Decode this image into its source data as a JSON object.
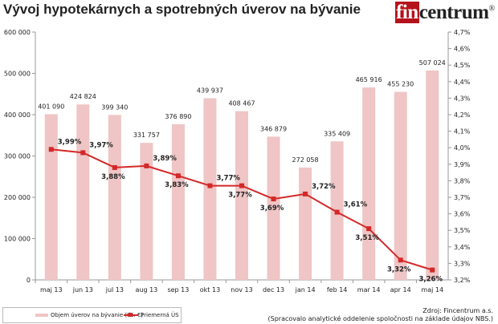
{
  "title": "Vývoj hypotekárnych a spotrebných úverov na bývanie",
  "logo": {
    "highlight": "fin",
    "rest": "centrum",
    "mark": "®",
    "accent": "#b5121b"
  },
  "source": {
    "line1": "Zdroj: Fincentrum a.s.",
    "line2": "(Spracovalo analytické oddelenie spoločnosti na základe údajov NBS.)"
  },
  "chart_data": {
    "type": "bar+line",
    "categories": [
      "maj 13",
      "jun 13",
      "jul 13",
      "aug 13",
      "sep 13",
      "okt 13",
      "nov 13",
      "dec 13",
      "jan 14",
      "feb 14",
      "mar 14",
      "apr 14",
      "maj 14"
    ],
    "series": [
      {
        "name": "Objem úverov na bývanie (tis. €)",
        "type": "bar",
        "axis": "left",
        "color": "#efc5c5",
        "values": [
          401090,
          424824,
          399340,
          331757,
          376890,
          439937,
          408467,
          346879,
          272058,
          335409,
          465916,
          455230,
          507024
        ],
        "labels": [
          "401 090",
          "424 824",
          "399 340",
          "331 757",
          "376 890",
          "439 937",
          "408 467",
          "346 879",
          "272 058",
          "335 409",
          "465 916",
          "455 230",
          "507 024"
        ]
      },
      {
        "name": "Priemerná ÚS",
        "type": "line",
        "axis": "right",
        "color": "#d42828",
        "values": [
          3.99,
          3.97,
          3.88,
          3.89,
          3.83,
          3.77,
          3.77,
          3.69,
          3.72,
          3.61,
          3.51,
          3.32,
          3.26
        ],
        "labels": [
          "3,99%",
          "3,97%",
          "3,88%",
          "3,89%",
          "3,83%",
          "3,77%",
          "3,77%",
          "3,69%",
          "3,72%",
          "3,61%",
          "3,51%",
          "3,32%",
          "3,26%"
        ]
      }
    ],
    "y_left": {
      "range": [
        0,
        600000
      ],
      "ticks": [
        "0",
        "100 000",
        "200 000",
        "300 000",
        "400 000",
        "500 000",
        "600 000"
      ]
    },
    "y_right": {
      "range": [
        3.2,
        4.7
      ],
      "ticks": [
        "3,2%",
        "3,3%",
        "3,4%",
        "3,5%",
        "3,6%",
        "3,7%",
        "3,8%",
        "3,9%",
        "4,0%",
        "4,1%",
        "4,2%",
        "4,3%",
        "4,4%",
        "4,5%",
        "4,6%",
        "4,7%"
      ]
    },
    "grid": false,
    "legend": "bottom-left"
  }
}
